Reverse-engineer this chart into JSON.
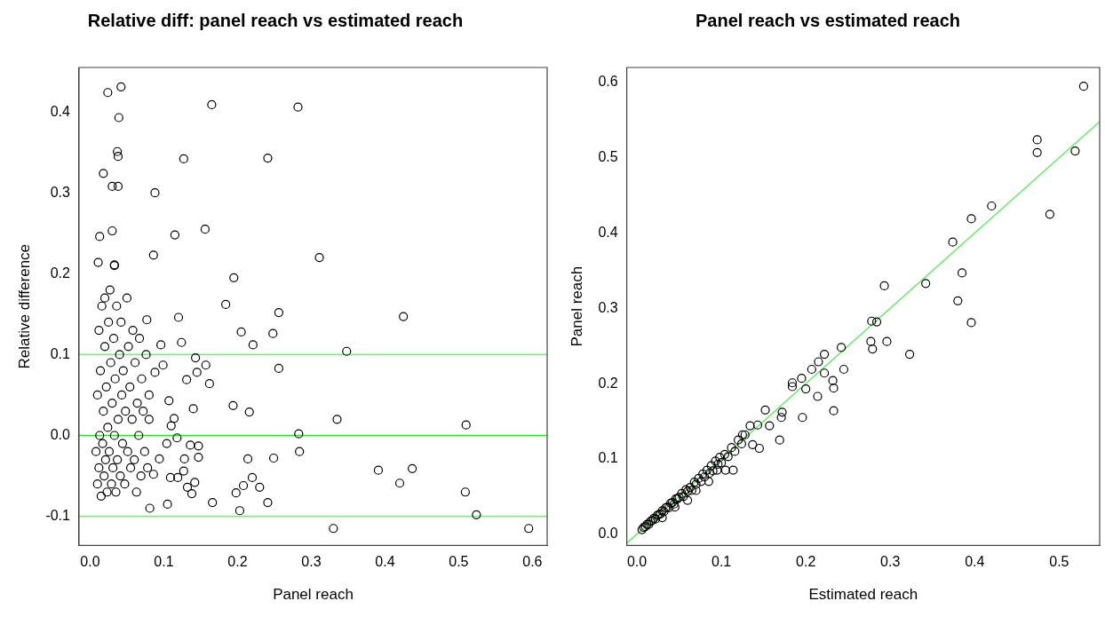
{
  "chart_data": [
    {
      "type": "scatter",
      "title": "Relative diff: panel reach vs estimated reach",
      "xlabel": "Panel reach",
      "ylabel": "Relative difference",
      "marker": "circle",
      "grid": false,
      "xlim": [
        -0.015,
        0.62
      ],
      "xticks": [
        {
          "value": 0,
          "label": "0.0"
        },
        0.1,
        0.2,
        0.3,
        0.4,
        0.5,
        0.6
      ],
      "ylim": [
        -0.136,
        0.455
      ],
      "yticks": [
        -0.1,
        {
          "value": 0,
          "label": "0.0"
        },
        0.1,
        0.2,
        0.3,
        0.4
      ],
      "ref_lines": [
        {
          "axis": "y",
          "value": 0.1,
          "color": "#7cf07c"
        },
        {
          "axis": "y",
          "value": 0,
          "color": "#33dd33"
        },
        {
          "axis": "y",
          "value": -0.1,
          "color": "#7cf07c"
        }
      ],
      "series": [
        {
          "type": "scatter",
          "color": "#000000",
          "x": [
            0.024,
            0.042,
            0.039,
            0.037,
            0.038,
            0.018,
            0.03,
            0.038,
            0.03,
            0.013,
            0.033,
            0.165,
            0.282,
            0.127,
            0.241,
            0.088,
            0.115,
            0.156,
            0.086,
            0.311,
            0.011,
            0.033,
            0.195,
            0.184,
            0.256,
            0.205,
            0.248,
            0.221,
            0.348,
            0.256,
            0.194,
            0.216,
            0.335,
            0.283,
            0.284,
            0.214,
            0.249,
            0.22,
            0.208,
            0.23,
            0.198,
            0.241,
            0.203,
            0.166,
            0.33,
            0.081,
            0.105,
            0.096,
            0.12,
            0.124,
            0.077,
            0.143,
            0.157,
            0.145,
            0.131,
            0.162,
            0.14,
            0.088,
            0.107,
            0.099,
            0.136,
            0.147,
            0.147,
            0.128,
            0.127,
            0.132,
            0.142,
            0.138,
            0.119,
            0.109,
            0.104,
            0.118,
            0.114,
            0.08,
            0.11,
            0.094,
            0.086,
            0.425,
            0.51,
            0.391,
            0.42,
            0.437,
            0.509,
            0.524,
            0.595,
            0.008,
            0.01,
            0.01,
            0.012,
            0.012,
            0.013,
            0.014,
            0.015,
            0.016,
            0.017,
            0.018,
            0.019,
            0.02,
            0.02,
            0.021,
            0.022,
            0.023,
            0.024,
            0.025,
            0.026,
            0.027,
            0.028,
            0.029,
            0.03,
            0.031,
            0.032,
            0.033,
            0.034,
            0.035,
            0.036,
            0.037,
            0.038,
            0.04,
            0.041,
            0.042,
            0.043,
            0.044,
            0.045,
            0.047,
            0.048,
            0.05,
            0.051,
            0.052,
            0.054,
            0.055,
            0.057,
            0.058,
            0.06,
            0.061,
            0.063,
            0.064,
            0.066,
            0.067,
            0.069,
            0.07,
            0.072,
            0.074,
            0.076,
            0.078,
            0.08
          ],
          "values": [
            0.424,
            0.431,
            0.393,
            0.351,
            0.345,
            0.324,
            0.308,
            0.308,
            0.253,
            0.246,
            0.211,
            0.409,
            0.406,
            0.342,
            0.343,
            0.3,
            0.248,
            0.255,
            0.223,
            0.22,
            0.214,
            0.21,
            0.195,
            0.162,
            0.152,
            0.128,
            0.126,
            0.112,
            0.104,
            0.083,
            0.037,
            0.029,
            0.02,
            0.002,
            -0.02,
            -0.029,
            -0.028,
            -0.052,
            -0.062,
            -0.064,
            -0.071,
            -0.083,
            -0.093,
            -0.083,
            -0.115,
            -0.09,
            -0.085,
            0.112,
            0.146,
            0.115,
            0.143,
            0.096,
            0.087,
            0.078,
            0.069,
            0.064,
            0.033,
            0.078,
            0.043,
            0.087,
            -0.012,
            -0.013,
            -0.027,
            -0.029,
            -0.044,
            -0.064,
            -0.058,
            -0.072,
            -0.052,
            -0.052,
            -0.01,
            -0.003,
            0.021,
            0.05,
            0.012,
            -0.029,
            -0.048,
            0.147,
            0.013,
            -0.043,
            -0.059,
            -0.041,
            -0.07,
            -0.098,
            -0.115,
            -0.02,
            0.05,
            -0.06,
            0.13,
            -0.04,
            0.0,
            0.08,
            -0.075,
            0.16,
            -0.01,
            0.03,
            -0.05,
            0.11,
            0.17,
            -0.03,
            0.06,
            -0.07,
            0.01,
            0.14,
            -0.02,
            0.18,
            0.09,
            -0.06,
            0.04,
            -0.04,
            0.12,
            0.0,
            0.07,
            -0.07,
            0.16,
            -0.03,
            0.02,
            0.1,
            -0.05,
            0.14,
            0.05,
            -0.01,
            0.08,
            -0.06,
            0.03,
            0.17,
            -0.02,
            0.11,
            0.06,
            -0.04,
            0.02,
            0.13,
            -0.03,
            0.09,
            -0.07,
            0.04,
            0.0,
            0.12,
            -0.05,
            0.07,
            0.03,
            -0.02,
            0.1,
            -0.04,
            0.02
          ]
        }
      ]
    },
    {
      "type": "scatter",
      "title": "Panel reach vs estimated reach",
      "xlabel": "Estimated reach",
      "ylabel": "Panel reach",
      "marker": "circle",
      "grid": false,
      "xlim": [
        -0.012,
        0.548
      ],
      "xticks": [
        {
          "value": 0,
          "label": "0.0"
        },
        0.1,
        0.2,
        0.3,
        0.4,
        0.5
      ],
      "ylim": [
        -0.015,
        0.62
      ],
      "yticks": [
        {
          "value": 0,
          "label": "0.0"
        },
        0.1,
        0.2,
        0.3,
        0.4,
        0.5,
        0.6
      ],
      "series": [
        {
          "type": "scatter",
          "color": "#000000",
          "x": [
            0.529,
            0.474,
            0.474,
            0.519,
            0.489,
            0.42,
            0.396,
            0.374,
            0.385,
            0.342,
            0.38,
            0.396,
            0.293,
            0.278,
            0.284,
            0.277,
            0.279,
            0.296,
            0.323,
            0.242,
            0.222,
            0.245,
            0.215,
            0.207,
            0.222,
            0.195,
            0.184,
            0.184,
            0.232,
            0.233,
            0.2,
            0.214,
            0.233,
            0.196,
            0.152,
            0.172,
            0.171,
            0.169,
            0.157,
            0.145,
            0.137,
            0.143,
            0.134,
            0.125,
            0.114,
            0.105,
            0.006,
            0.008,
            0.01,
            0.012,
            0.014,
            0.016,
            0.018,
            0.02,
            0.022,
            0.024,
            0.026,
            0.028,
            0.03,
            0.032,
            0.034,
            0.036,
            0.038,
            0.04,
            0.042,
            0.044,
            0.046,
            0.048,
            0.05,
            0.053,
            0.055,
            0.058,
            0.06,
            0.063,
            0.065,
            0.068,
            0.07,
            0.073,
            0.076,
            0.078,
            0.08,
            0.083,
            0.086,
            0.088,
            0.09,
            0.093,
            0.096,
            0.098,
            0.1,
            0.104,
            0.108,
            0.112,
            0.116,
            0.12,
            0.124,
            0.128,
            0.06,
            0.07,
            0.085,
            0.095,
            0.03,
            0.045
          ],
          "values": [
            0.595,
            0.524,
            0.507,
            0.509,
            0.425,
            0.436,
            0.419,
            0.388,
            0.347,
            0.333,
            0.31,
            0.281,
            0.33,
            0.283,
            0.282,
            0.256,
            0.246,
            0.256,
            0.239,
            0.248,
            0.239,
            0.219,
            0.229,
            0.219,
            0.214,
            0.207,
            0.201,
            0.196,
            0.204,
            0.194,
            0.193,
            0.183,
            0.164,
            0.155,
            0.165,
            0.162,
            0.155,
            0.125,
            0.144,
            0.114,
            0.119,
            0.145,
            0.144,
            0.132,
            0.085,
            0.085,
            0.006,
            0.009,
            0.01,
            0.013,
            0.013,
            0.017,
            0.018,
            0.021,
            0.02,
            0.025,
            0.026,
            0.027,
            0.031,
            0.03,
            0.035,
            0.036,
            0.035,
            0.041,
            0.042,
            0.04,
            0.047,
            0.047,
            0.049,
            0.054,
            0.05,
            0.059,
            0.057,
            0.062,
            0.058,
            0.069,
            0.066,
            0.074,
            0.07,
            0.08,
            0.076,
            0.085,
            0.081,
            0.091,
            0.084,
            0.097,
            0.093,
            0.102,
            0.095,
            0.106,
            0.103,
            0.115,
            0.11,
            0.125,
            0.12,
            0.132,
            0.045,
            0.058,
            0.07,
            0.085,
            0.022,
            0.036
          ]
        },
        {
          "type": "line",
          "marker": "none",
          "color": "#66ee66",
          "x": [
            -0.012,
            0.548
          ],
          "values": [
            -0.012,
            0.548
          ]
        }
      ]
    }
  ]
}
